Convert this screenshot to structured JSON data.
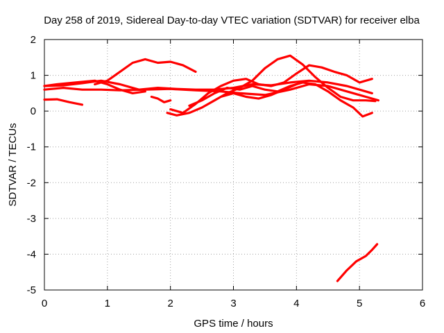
{
  "chart_data": {
    "type": "line",
    "title": "Day 258 of 2019, Sidereal Day-to-day VTEC variation (SDTVAR) for receiver elba",
    "xlabel": "GPS time / hours",
    "ylabel": "SDTVAR / TECUs",
    "xlim": [
      0,
      6
    ],
    "ylim": [
      -5,
      2
    ],
    "x_ticks": [
      "0",
      "1",
      "2",
      "3",
      "4",
      "5",
      "6"
    ],
    "y_ticks": [
      "2",
      "1",
      "0",
      "-1",
      "-2",
      "-3",
      "-4",
      "-5"
    ],
    "grid": true,
    "color": "#ff0000",
    "series": [
      {
        "name": "trace-1",
        "x": [
          0.0,
          0.2,
          0.4,
          0.6
        ],
        "y": [
          0.32,
          0.33,
          0.25,
          0.18
        ]
      },
      {
        "name": "trace-2",
        "x": [
          0.0,
          0.3,
          0.6,
          0.9,
          1.2,
          1.6,
          2.0,
          2.4,
          2.8,
          3.1,
          3.5,
          3.9,
          4.2,
          4.5,
          4.8,
          5.0,
          5.1,
          5.3
        ],
        "y": [
          0.6,
          0.65,
          0.6,
          0.6,
          0.58,
          0.6,
          0.62,
          0.58,
          0.55,
          0.5,
          0.45,
          0.6,
          0.75,
          0.7,
          0.55,
          0.45,
          0.4,
          0.3
        ]
      },
      {
        "name": "trace-3",
        "x": [
          0.0,
          0.3,
          0.6,
          0.9,
          1.2,
          1.5,
          1.8,
          2.1,
          2.4,
          2.7,
          3.0,
          3.3,
          3.6,
          3.9,
          4.2,
          4.5,
          4.8,
          5.0,
          5.2
        ],
        "y": [
          0.7,
          0.72,
          0.78,
          0.85,
          0.75,
          0.6,
          0.65,
          0.62,
          0.6,
          0.6,
          0.65,
          0.75,
          0.72,
          0.8,
          0.85,
          0.8,
          0.7,
          0.6,
          0.5
        ]
      },
      {
        "name": "trace-4",
        "x": [
          0.8,
          1.0,
          1.2,
          1.4,
          1.6,
          1.8,
          2.0,
          2.2,
          2.4
        ],
        "y": [
          0.75,
          0.85,
          1.1,
          1.35,
          1.45,
          1.35,
          1.38,
          1.28,
          1.1
        ]
      },
      {
        "name": "trace-5",
        "x": [
          0.0,
          0.2,
          0.5,
          0.8,
          1.0,
          1.2,
          1.4,
          1.6
        ],
        "y": [
          0.7,
          0.75,
          0.8,
          0.85,
          0.75,
          0.6,
          0.5,
          0.55
        ]
      },
      {
        "name": "trace-6",
        "x": [
          1.7,
          1.8,
          1.9,
          2.0
        ],
        "y": [
          0.4,
          0.35,
          0.25,
          0.3
        ]
      },
      {
        "name": "trace-7",
        "x": [
          1.95,
          2.1,
          2.3,
          2.5,
          2.7,
          2.9,
          3.1,
          3.3,
          3.5,
          3.7,
          3.9,
          4.1,
          4.3,
          4.5,
          4.7,
          4.9,
          5.1,
          5.25
        ],
        "y": [
          -0.05,
          -0.12,
          -0.05,
          0.1,
          0.3,
          0.5,
          0.65,
          0.85,
          1.2,
          1.45,
          1.55,
          1.3,
          0.95,
          0.65,
          0.4,
          0.3,
          0.3,
          0.28
        ]
      },
      {
        "name": "trace-8",
        "x": [
          2.0,
          2.2,
          2.4,
          2.6,
          2.8,
          3.0,
          3.2,
          3.4,
          3.6,
          3.8,
          4.0,
          4.2,
          4.4,
          4.6,
          4.8,
          5.0,
          5.2
        ],
        "y": [
          0.05,
          -0.05,
          0.2,
          0.5,
          0.7,
          0.85,
          0.9,
          0.75,
          0.7,
          0.8,
          1.05,
          1.28,
          1.22,
          1.1,
          1.0,
          0.8,
          0.9
        ]
      },
      {
        "name": "trace-9",
        "x": [
          2.3,
          2.5,
          2.7,
          2.9,
          3.1,
          3.3,
          3.5,
          3.7,
          3.9,
          4.1,
          4.3,
          4.5,
          4.7,
          4.9,
          5.05,
          5.2
        ],
        "y": [
          0.15,
          0.3,
          0.5,
          0.65,
          0.6,
          0.7,
          0.6,
          0.55,
          0.7,
          0.8,
          0.75,
          0.55,
          0.3,
          0.1,
          -0.15,
          -0.05
        ]
      },
      {
        "name": "trace-10",
        "x": [
          2.8,
          3.0,
          3.2,
          3.4,
          3.6,
          3.8,
          4.0
        ],
        "y": [
          0.4,
          0.5,
          0.4,
          0.35,
          0.45,
          0.6,
          0.75
        ]
      },
      {
        "name": "trace-11",
        "x": [
          4.65,
          4.8,
          4.95,
          5.1,
          5.2,
          5.28
        ],
        "y": [
          -4.75,
          -4.45,
          -4.2,
          -4.05,
          -3.88,
          -3.72
        ]
      }
    ]
  }
}
